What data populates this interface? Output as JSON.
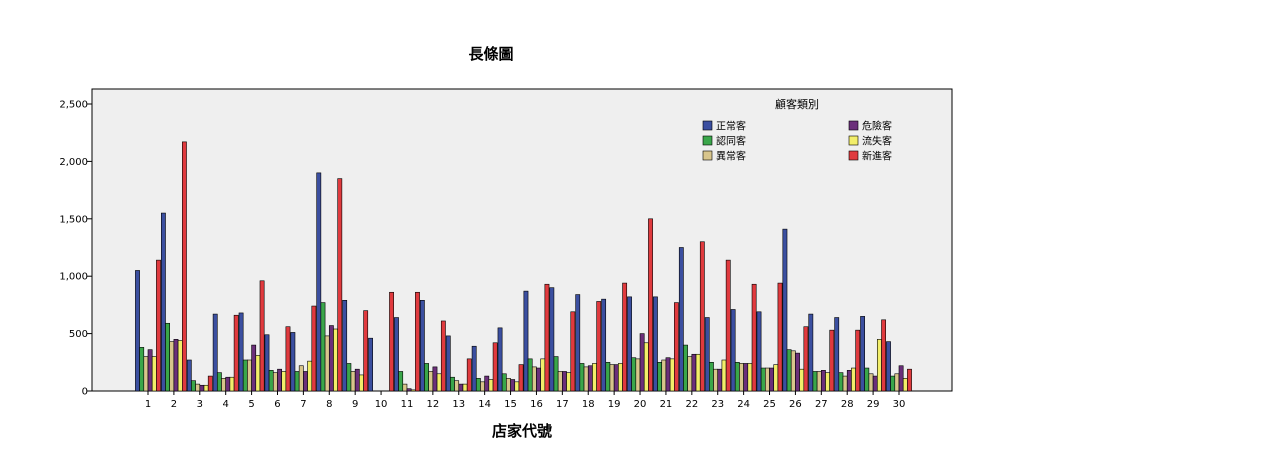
{
  "chart_data": {
    "type": "bar",
    "title": "長條圖",
    "xlabel": "店家代號",
    "ylabel": "",
    "ylim": [
      0,
      2500
    ],
    "yticks": [
      0,
      500,
      1000,
      1500,
      2000,
      2500
    ],
    "ytick_labels": [
      "0",
      "500",
      "1,000",
      "1,500",
      "2,000",
      "2,500"
    ],
    "legend": {
      "title": "顧客類別",
      "placement": "top-right"
    },
    "background": "#efefef",
    "categories": [
      "1",
      "2",
      "3",
      "4",
      "5",
      "6",
      "7",
      "8",
      "9",
      "10",
      "11",
      "12",
      "13",
      "14",
      "15",
      "16",
      "17",
      "18",
      "19",
      "20",
      "21",
      "22",
      "23",
      "24",
      "25",
      "26",
      "27",
      "28",
      "29",
      "30"
    ],
    "series": [
      {
        "name": "正常客",
        "color": "#3b4fa0",
        "values": [
          1050,
          1550,
          270,
          670,
          680,
          490,
          510,
          1900,
          790,
          460,
          640,
          790,
          480,
          390,
          550,
          870,
          900,
          840,
          800,
          820,
          820,
          1250,
          640,
          710,
          690,
          1410,
          670,
          640,
          650,
          430
        ]
      },
      {
        "name": "認同客",
        "color": "#3aa64a",
        "values": [
          380,
          590,
          90,
          160,
          270,
          180,
          170,
          770,
          240,
          0,
          170,
          240,
          120,
          110,
          150,
          280,
          300,
          240,
          250,
          290,
          250,
          400,
          250,
          250,
          200,
          360,
          170,
          160,
          200,
          130
        ]
      },
      {
        "name": "異常客",
        "color": "#d8c58c",
        "values": [
          300,
          430,
          60,
          110,
          270,
          160,
          220,
          480,
          170,
          0,
          60,
          170,
          90,
          80,
          110,
          210,
          170,
          210,
          230,
          280,
          270,
          300,
          190,
          240,
          200,
          350,
          170,
          130,
          150,
          150
        ]
      },
      {
        "name": "危險客",
        "color": "#6b2f7a",
        "values": [
          360,
          450,
          50,
          120,
          400,
          190,
          170,
          570,
          190,
          0,
          20,
          210,
          60,
          130,
          100,
          200,
          170,
          220,
          230,
          500,
          290,
          320,
          190,
          240,
          200,
          330,
          180,
          180,
          130,
          220
        ]
      },
      {
        "name": "流失客",
        "color": "#f2ee6a",
        "values": [
          300,
          440,
          50,
          120,
          310,
          170,
          260,
          540,
          140,
          0,
          10,
          150,
          60,
          100,
          80,
          280,
          160,
          240,
          240,
          420,
          280,
          320,
          270,
          240,
          230,
          190,
          160,
          200,
          450,
          110
        ]
      },
      {
        "name": "新進客",
        "color": "#e03a3e",
        "values": [
          1140,
          2170,
          130,
          660,
          960,
          560,
          740,
          1850,
          700,
          860,
          860,
          610,
          280,
          420,
          230,
          930,
          690,
          780,
          940,
          1500,
          770,
          1300,
          1140,
          930,
          940,
          560,
          530,
          530,
          620,
          190
        ]
      }
    ]
  }
}
